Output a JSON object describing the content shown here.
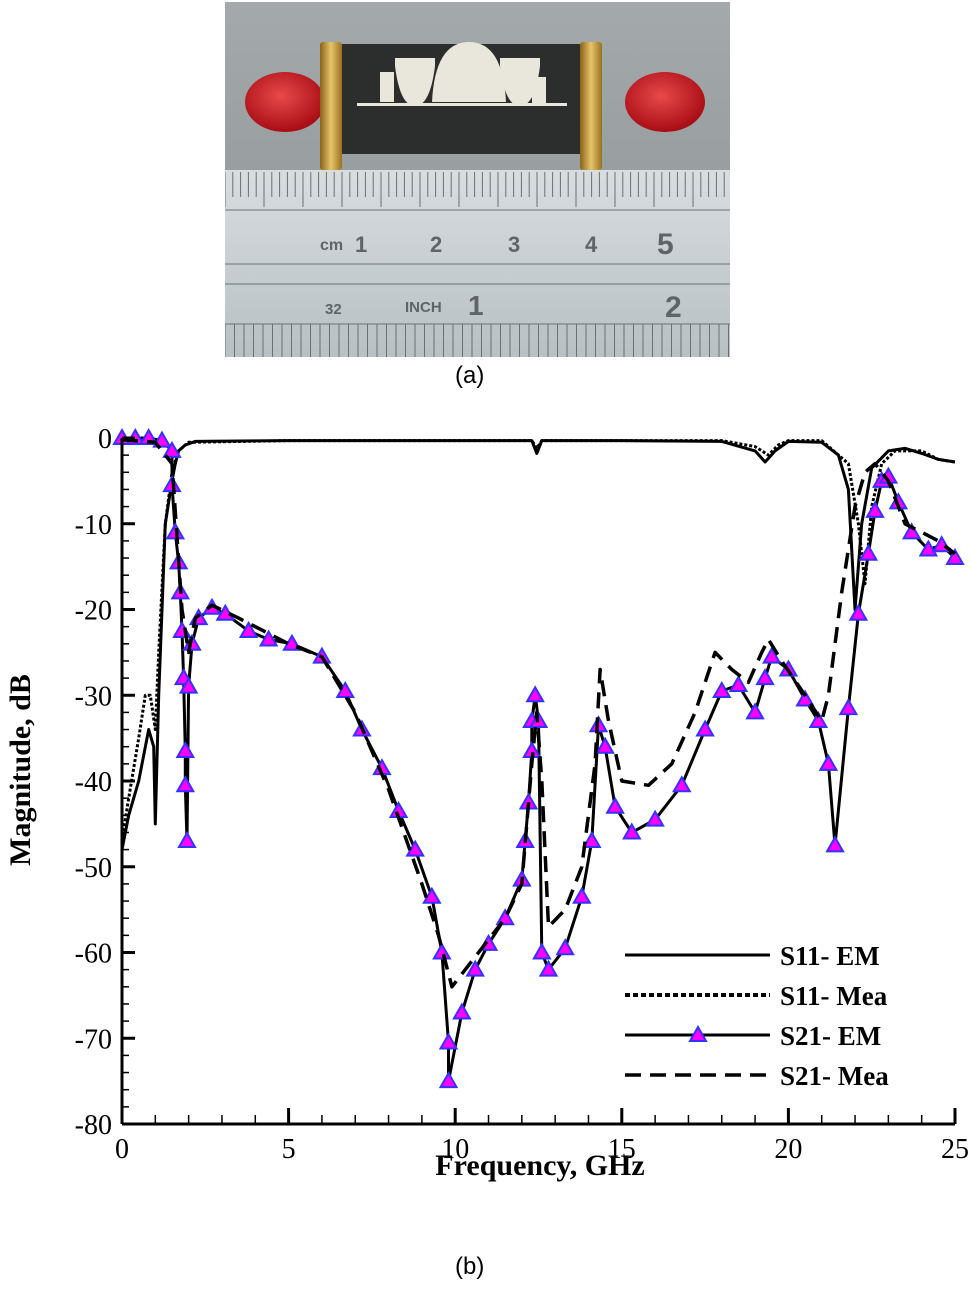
{
  "figure": {
    "caption_a": "(a)",
    "caption_b": "(b)",
    "photo": {
      "description": "Fabricated microstrip filter with red-capped SMA connectors on a metal ruler",
      "ruler_cm_labels": [
        "cm",
        "1",
        "2",
        "3",
        "4",
        "5"
      ],
      "ruler_inch_labels": [
        "32",
        "INCH",
        "1",
        "2"
      ],
      "colors": {
        "connector_cap": "#c8141c",
        "gold": "#d4a848",
        "substrate": "#2b2d2c",
        "copper_pattern": "#e8e6da",
        "ruler": "#c9cfd1",
        "background": "#9aa0a3"
      }
    }
  },
  "chart_data": {
    "type": "line",
    "title": "",
    "xlabel": "Frequency, GHz",
    "ylabel": "Magnitude, dB",
    "xlim": [
      0,
      25
    ],
    "ylim": [
      -80,
      0
    ],
    "xticks": [
      0,
      5,
      10,
      15,
      20,
      25
    ],
    "yticks": [
      0,
      -10,
      -20,
      -30,
      -40,
      -50,
      -60,
      -70,
      -80
    ],
    "grid": false,
    "legend_position": "lower right",
    "legend": [
      "S11- EM",
      "S11- Mea",
      "S21- EM",
      "S21- Mea"
    ],
    "series": [
      {
        "name": "S11- EM",
        "style": "solid",
        "color": "#000000",
        "points": [
          [
            0,
            -48
          ],
          [
            0.2,
            -44
          ],
          [
            0.5,
            -40
          ],
          [
            0.8,
            -34
          ],
          [
            0.95,
            -36
          ],
          [
            1.0,
            -45
          ],
          [
            1.1,
            -30
          ],
          [
            1.3,
            -10
          ],
          [
            1.5,
            -5
          ],
          [
            1.6,
            -3
          ],
          [
            1.7,
            -1.5
          ],
          [
            1.9,
            -0.8
          ],
          [
            2.2,
            -0.4
          ],
          [
            5,
            -0.3
          ],
          [
            10,
            -0.3
          ],
          [
            12.3,
            -0.3
          ],
          [
            12.45,
            -1.8
          ],
          [
            12.6,
            -0.3
          ],
          [
            15,
            -0.3
          ],
          [
            18,
            -0.4
          ],
          [
            19,
            -1.5
          ],
          [
            19.3,
            -2.8
          ],
          [
            19.6,
            -1.5
          ],
          [
            20,
            -0.4
          ],
          [
            21,
            -0.5
          ],
          [
            21.5,
            -2
          ],
          [
            21.8,
            -6
          ],
          [
            22.0,
            -20
          ],
          [
            22.2,
            -10
          ],
          [
            22.5,
            -3.5
          ],
          [
            23,
            -1.5
          ],
          [
            23.5,
            -1.2
          ],
          [
            24,
            -1.8
          ],
          [
            24.5,
            -2.5
          ],
          [
            25,
            -2.8
          ]
        ]
      },
      {
        "name": "S11- Mea",
        "style": "dotted",
        "color": "#000000",
        "points": [
          [
            0,
            -47
          ],
          [
            0.2,
            -42
          ],
          [
            0.5,
            -35
          ],
          [
            0.7,
            -30
          ],
          [
            0.85,
            -30
          ],
          [
            1.0,
            -34
          ],
          [
            1.1,
            -25
          ],
          [
            1.3,
            -10
          ],
          [
            1.5,
            -4
          ],
          [
            1.7,
            -1.5
          ],
          [
            2.0,
            -0.5
          ],
          [
            5,
            -0.3
          ],
          [
            10,
            -0.3
          ],
          [
            12.3,
            -0.3
          ],
          [
            12.45,
            -1.2
          ],
          [
            12.6,
            -0.3
          ],
          [
            15,
            -0.3
          ],
          [
            18,
            -0.3
          ],
          [
            19,
            -1
          ],
          [
            19.4,
            -2
          ],
          [
            19.7,
            -0.8
          ],
          [
            20,
            -0.3
          ],
          [
            21,
            -0.3
          ],
          [
            21.8,
            -3
          ],
          [
            22.1,
            -10
          ],
          [
            22.3,
            -17
          ],
          [
            22.5,
            -8
          ],
          [
            22.8,
            -3
          ],
          [
            23.2,
            -1.5
          ],
          [
            24,
            -1.5
          ],
          [
            24.5,
            -2.5
          ],
          [
            25,
            -2.8
          ]
        ]
      },
      {
        "name": "S21- EM",
        "style": "solid-triangle-markers",
        "color": "#000000",
        "marker_fill": "#ff00ff",
        "marker_edge": "#3333ff",
        "points": [
          [
            0,
            0
          ],
          [
            0.4,
            0
          ],
          [
            0.8,
            0
          ],
          [
            1.2,
            -0.3
          ],
          [
            1.5,
            -1.5
          ],
          [
            1.5,
            -5.5
          ],
          [
            1.6,
            -11
          ],
          [
            1.7,
            -14.5
          ],
          [
            1.75,
            -18
          ],
          [
            1.8,
            -22.5
          ],
          [
            1.85,
            -28
          ],
          [
            1.9,
            -36.5
          ],
          [
            1.9,
            -40.5
          ],
          [
            1.95,
            -47
          ],
          [
            2.0,
            -29
          ],
          [
            2.1,
            -24
          ],
          [
            2.3,
            -21
          ],
          [
            2.7,
            -19.8
          ],
          [
            3.1,
            -20.5
          ],
          [
            3.8,
            -22.5
          ],
          [
            4.4,
            -23.5
          ],
          [
            5.1,
            -24
          ],
          [
            6.0,
            -25.5
          ],
          [
            6.7,
            -29.5
          ],
          [
            7.2,
            -34
          ],
          [
            7.8,
            -38.5
          ],
          [
            8.3,
            -43.5
          ],
          [
            8.8,
            -48
          ],
          [
            9.3,
            -53.5
          ],
          [
            9.6,
            -60
          ],
          [
            9.8,
            -70.5
          ],
          [
            9.8,
            -75
          ],
          [
            10.2,
            -67
          ],
          [
            10.6,
            -62
          ],
          [
            11.0,
            -59
          ],
          [
            11.5,
            -56
          ],
          [
            12.0,
            -51.5
          ],
          [
            12.1,
            -47
          ],
          [
            12.2,
            -42.5
          ],
          [
            12.3,
            -36.5
          ],
          [
            12.3,
            -33
          ],
          [
            12.4,
            -30
          ],
          [
            12.5,
            -33
          ],
          [
            12.6,
            -60
          ],
          [
            12.8,
            -62
          ],
          [
            13.3,
            -59.5
          ],
          [
            13.8,
            -53.5
          ],
          [
            14.1,
            -47
          ],
          [
            14.3,
            -33.5
          ],
          [
            14.5,
            -36
          ],
          [
            14.8,
            -43
          ],
          [
            15.3,
            -46
          ],
          [
            16.0,
            -44.5
          ],
          [
            16.8,
            -40.5
          ],
          [
            17.5,
            -34
          ],
          [
            18.0,
            -29.5
          ],
          [
            18.5,
            -28.8
          ],
          [
            19.0,
            -32
          ],
          [
            19.3,
            -28
          ],
          [
            19.5,
            -25.5
          ],
          [
            20.0,
            -27
          ],
          [
            20.5,
            -30.5
          ],
          [
            20.9,
            -33
          ],
          [
            21.2,
            -38
          ],
          [
            21.4,
            -47.5
          ],
          [
            21.8,
            -31.5
          ],
          [
            22.1,
            -20.5
          ],
          [
            22.4,
            -13.5
          ],
          [
            22.6,
            -8.5
          ],
          [
            22.8,
            -5
          ],
          [
            23.0,
            -4.5
          ],
          [
            23.3,
            -7.5
          ],
          [
            23.7,
            -11
          ],
          [
            24.2,
            -13
          ],
          [
            24.6,
            -12.5
          ],
          [
            25,
            -14
          ]
        ]
      },
      {
        "name": "S21- Mea",
        "style": "dashed",
        "color": "#000000",
        "points": [
          [
            0,
            -0.2
          ],
          [
            1.0,
            -0.5
          ],
          [
            1.5,
            -3
          ],
          [
            1.8,
            -20
          ],
          [
            2.0,
            -25
          ],
          [
            2.2,
            -21
          ],
          [
            2.7,
            -19.5
          ],
          [
            3.5,
            -21
          ],
          [
            5,
            -24
          ],
          [
            6,
            -25.5
          ],
          [
            7,
            -32
          ],
          [
            8,
            -41
          ],
          [
            9,
            -52
          ],
          [
            9.5,
            -58
          ],
          [
            9.9,
            -64
          ],
          [
            10.5,
            -61
          ],
          [
            11.5,
            -56
          ],
          [
            12.0,
            -52
          ],
          [
            12.3,
            -38
          ],
          [
            12.45,
            -32
          ],
          [
            12.6,
            -40
          ],
          [
            12.8,
            -57
          ],
          [
            13.3,
            -55
          ],
          [
            13.8,
            -50
          ],
          [
            14.2,
            -38
          ],
          [
            14.35,
            -27
          ],
          [
            14.6,
            -33
          ],
          [
            15.0,
            -40
          ],
          [
            15.8,
            -40.5
          ],
          [
            16.5,
            -38
          ],
          [
            17.2,
            -32
          ],
          [
            17.8,
            -25
          ],
          [
            18.3,
            -27
          ],
          [
            18.8,
            -28.5
          ],
          [
            19.2,
            -25
          ],
          [
            19.4,
            -23.5
          ],
          [
            19.8,
            -26
          ],
          [
            20.5,
            -30
          ],
          [
            21.0,
            -33
          ],
          [
            21.2,
            -30
          ],
          [
            21.6,
            -18
          ],
          [
            22.0,
            -8
          ],
          [
            22.3,
            -4
          ],
          [
            22.6,
            -3
          ],
          [
            23.0,
            -5
          ],
          [
            23.5,
            -10
          ],
          [
            24.0,
            -11
          ],
          [
            24.5,
            -12
          ],
          [
            25,
            -13.5
          ]
        ]
      }
    ]
  }
}
